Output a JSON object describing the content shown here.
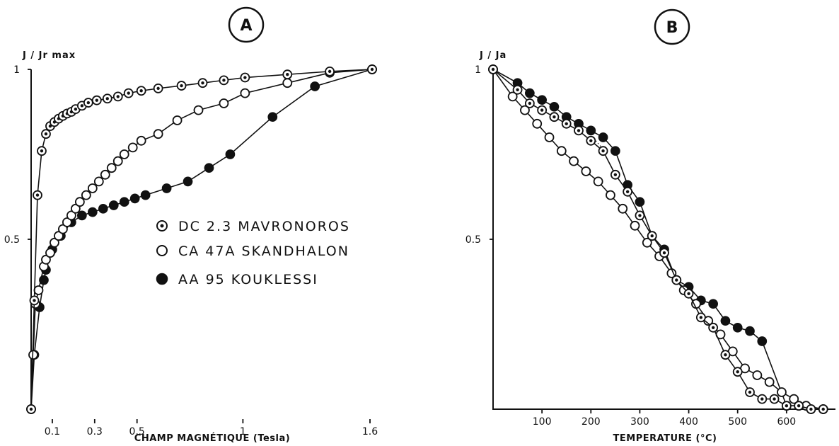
{
  "chart_data": [
    {
      "panel": "A",
      "type": "line",
      "ylabel": "J / Jr max",
      "xlabel": "CHAMP MAGNÉTIQUE (Tesla)",
      "x_ticks": [
        {
          "value": 0.1,
          "label": "0.1"
        },
        {
          "value": 0.3,
          "label": "0.3"
        },
        {
          "value": 0.5,
          "label": "0.5"
        },
        {
          "value": 1,
          "label": "1"
        },
        {
          "value": 1.6,
          "label": "1.6"
        }
      ],
      "y_ticks": [
        {
          "value": 0.5,
          "label": "0.5"
        },
        {
          "value": 1,
          "label": "1"
        }
      ],
      "xlim": [
        0,
        1.6
      ],
      "ylim": [
        0,
        1
      ],
      "grid": false,
      "legend": [
        {
          "label": "DC  2.3  MAVRONOROS",
          "marker": "dotted"
        },
        {
          "label": "CA  47A  SKANDHALON",
          "marker": "open"
        },
        {
          "label": "AA  95  KOUKLESSI",
          "marker": "filled"
        }
      ],
      "series": [
        {
          "marker": "dotted",
          "x": [
            0.0,
            0.015,
            0.03,
            0.05,
            0.07,
            0.09,
            0.11,
            0.13,
            0.15,
            0.17,
            0.19,
            0.21,
            0.24,
            0.27,
            0.31,
            0.36,
            0.41,
            0.46,
            0.52,
            0.6,
            0.71,
            0.81,
            0.91,
            1.01,
            1.21,
            1.41,
            1.61
          ],
          "y": [
            0.0,
            0.32,
            0.63,
            0.76,
            0.81,
            0.833,
            0.845,
            0.855,
            0.863,
            0.87,
            0.875,
            0.883,
            0.893,
            0.902,
            0.909,
            0.914,
            0.92,
            0.93,
            0.937,
            0.944,
            0.952,
            0.96,
            0.968,
            0.976,
            0.985,
            0.994,
            1.0
          ]
        },
        {
          "marker": "open",
          "x": [
            0.0,
            0.01,
            0.02,
            0.035,
            0.06,
            0.07,
            0.09,
            0.11,
            0.13,
            0.15,
            0.17,
            0.19,
            0.21,
            0.23,
            0.26,
            0.29,
            0.32,
            0.35,
            0.38,
            0.41,
            0.44,
            0.48,
            0.52,
            0.6,
            0.69,
            0.79,
            0.91,
            1.01,
            1.21,
            1.41,
            1.61
          ],
          "y": [
            0.0,
            0.16,
            0.31,
            0.35,
            0.42,
            0.44,
            0.46,
            0.49,
            0.51,
            0.53,
            0.55,
            0.57,
            0.59,
            0.61,
            0.63,
            0.65,
            0.67,
            0.69,
            0.71,
            0.73,
            0.75,
            0.77,
            0.79,
            0.81,
            0.85,
            0.88,
            0.9,
            0.93,
            0.96,
            0.99,
            1.0
          ]
        },
        {
          "marker": "filled",
          "x": [
            0.0,
            0.015,
            0.04,
            0.06,
            0.07,
            0.1,
            0.14,
            0.19,
            0.24,
            0.29,
            0.34,
            0.39,
            0.44,
            0.49,
            0.54,
            0.64,
            0.74,
            0.84,
            0.94,
            1.14,
            1.34,
            1.61
          ],
          "y": [
            0.0,
            0.16,
            0.3,
            0.38,
            0.41,
            0.47,
            0.51,
            0.55,
            0.57,
            0.58,
            0.59,
            0.6,
            0.61,
            0.62,
            0.63,
            0.65,
            0.67,
            0.71,
            0.75,
            0.86,
            0.95,
            1.0
          ]
        }
      ]
    },
    {
      "panel": "B",
      "type": "line",
      "ylabel": "J / Ja",
      "xlabel": "TEMPERATURE (°C)",
      "x_ticks": [
        {
          "value": 100,
          "label": "100"
        },
        {
          "value": 200,
          "label": "200"
        },
        {
          "value": 300,
          "label": "300"
        },
        {
          "value": 400,
          "label": "400"
        },
        {
          "value": 500,
          "label": "500"
        },
        {
          "value": 600,
          "label": "600"
        }
      ],
      "y_ticks": [
        {
          "value": 0.5,
          "label": "0.5"
        },
        {
          "value": 1,
          "label": "1"
        }
      ],
      "xlim": [
        0,
        700
      ],
      "ylim": [
        0,
        1
      ],
      "grid": false,
      "series": [
        {
          "marker": "filled",
          "x": [
            0,
            50,
            75,
            100,
            125,
            150,
            175,
            200,
            225,
            250,
            275,
            300,
            325,
            350,
            375,
            400,
            425,
            450,
            475,
            500,
            525,
            550,
            600,
            625,
            650,
            675
          ],
          "y": [
            1.0,
            0.96,
            0.93,
            0.91,
            0.89,
            0.86,
            0.84,
            0.82,
            0.8,
            0.76,
            0.66,
            0.61,
            0.51,
            0.47,
            0.38,
            0.36,
            0.32,
            0.31,
            0.26,
            0.24,
            0.23,
            0.2,
            0.01,
            0.01,
            0.0,
            0.0
          ]
        },
        {
          "marker": "dotted",
          "x": [
            0,
            50,
            75,
            100,
            125,
            150,
            175,
            200,
            225,
            250,
            275,
            300,
            325,
            350,
            375,
            400,
            425,
            450,
            475,
            500,
            525,
            550,
            575,
            600,
            625,
            650,
            675
          ],
          "y": [
            1.0,
            0.94,
            0.9,
            0.88,
            0.86,
            0.84,
            0.82,
            0.79,
            0.76,
            0.69,
            0.64,
            0.57,
            0.51,
            0.46,
            0.38,
            0.34,
            0.27,
            0.24,
            0.16,
            0.11,
            0.05,
            0.03,
            0.03,
            0.01,
            0.01,
            0.0,
            0.0
          ]
        },
        {
          "marker": "open",
          "x": [
            0,
            40,
            65,
            90,
            115,
            140,
            165,
            190,
            215,
            240,
            265,
            290,
            315,
            340,
            365,
            390,
            415,
            440,
            465,
            490,
            515,
            540,
            565,
            590,
            615,
            640,
            675
          ],
          "y": [
            1.0,
            0.92,
            0.88,
            0.84,
            0.8,
            0.76,
            0.73,
            0.7,
            0.67,
            0.63,
            0.59,
            0.54,
            0.49,
            0.45,
            0.4,
            0.35,
            0.31,
            0.26,
            0.22,
            0.17,
            0.12,
            0.1,
            0.08,
            0.05,
            0.03,
            0.01,
            0.0
          ]
        }
      ]
    }
  ]
}
